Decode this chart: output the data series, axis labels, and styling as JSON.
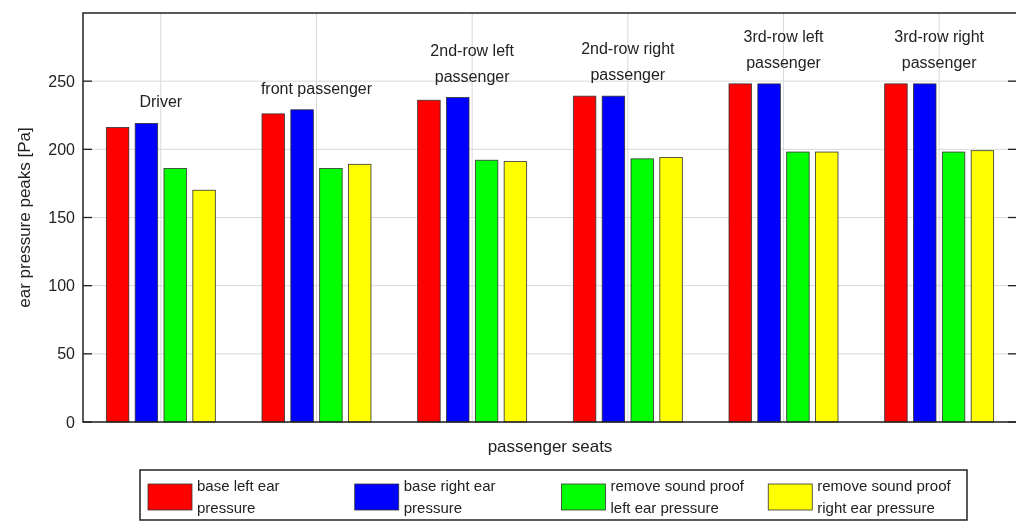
{
  "chart_data": {
    "type": "bar",
    "xlabel": "passenger seats",
    "ylabel": "ear pressure peaks [Pa]",
    "categories": [
      "Driver",
      "front passenger",
      "2nd-row left passenger",
      "2nd-row right passenger",
      "3rd-row left passenger",
      "3rd-row right passenger"
    ],
    "series": [
      {
        "name": "base left ear pressure",
        "color": "#ff0000",
        "values": [
          216,
          226,
          236,
          239,
          248,
          248
        ]
      },
      {
        "name": "base right ear pressure",
        "color": "#0000ff",
        "values": [
          219,
          229,
          238,
          239,
          248,
          248
        ]
      },
      {
        "name": "remove sound proof left ear pressure",
        "color": "#00ff00",
        "values": [
          186,
          186,
          192,
          193,
          198,
          198
        ]
      },
      {
        "name": "remove sound proof right ear pressure",
        "color": "#ffff00",
        "values": [
          170,
          189,
          191,
          194,
          198,
          199
        ]
      }
    ],
    "ylim": [
      0,
      300
    ],
    "yticks": [
      0,
      50,
      100,
      150,
      200,
      250
    ],
    "grid": true,
    "legend": "bottom",
    "tick_labels": "y"
  }
}
